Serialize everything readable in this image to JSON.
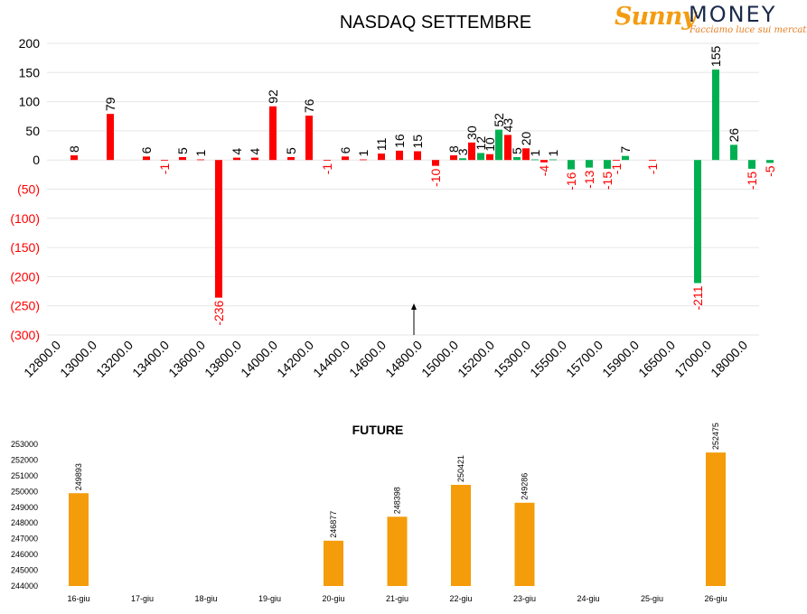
{
  "logo": {
    "script_text": "Sunny",
    "word": "MONEY",
    "tagline": "Facciamo luce sui mercati"
  },
  "colors": {
    "positive_call": "#ff0000",
    "positive_put": "#00b050",
    "negative_label": "#ff0000",
    "axis_text": "#000000",
    "future_bar": "#f59c0a"
  },
  "chart_data": [
    {
      "type": "bar",
      "title": "NASDAQ SETTEMBRE",
      "xlabel": "",
      "ylabel": "",
      "ylim": [
        -300,
        200
      ],
      "y_ticks": [
        {
          "v": 200,
          "label": "200"
        },
        {
          "v": 150,
          "label": "150"
        },
        {
          "v": 100,
          "label": "100"
        },
        {
          "v": 50,
          "label": "50"
        },
        {
          "v": 0,
          "label": "0"
        },
        {
          "v": -50,
          "label": "(50)"
        },
        {
          "v": -100,
          "label": "(100)"
        },
        {
          "v": -150,
          "label": "(150)"
        },
        {
          "v": -200,
          "label": "(200)"
        },
        {
          "v": -250,
          "label": "(250)"
        },
        {
          "v": -300,
          "label": "(300)"
        }
      ],
      "x_tick_labels": [
        "12800.0",
        "13000.0",
        "13200.0",
        "13400.0",
        "13600.0",
        "13800.0",
        "14000.0",
        "14200.0",
        "14400.0",
        "14600.0",
        "14800.0",
        "15000.0",
        "15200.0",
        "15300.0",
        "15500.0",
        "15700.0",
        "15900.0",
        "16500.0",
        "17000.0",
        "18000.0"
      ],
      "grid": true,
      "legend": "none",
      "series": [
        {
          "color": "#ff0000",
          "points": [
            {
              "i": 0.5,
              "v": 8
            },
            {
              "i": 1.5,
              "v": 79
            },
            {
              "i": 2.5,
              "v": 6
            },
            {
              "i": 3.0,
              "v": -1
            },
            {
              "i": 3.5,
              "v": 5
            },
            {
              "i": 4.0,
              "v": 1
            },
            {
              "i": 4.5,
              "v": -236
            },
            {
              "i": 5.0,
              "v": 4
            },
            {
              "i": 5.5,
              "v": 4
            },
            {
              "i": 6.0,
              "v": 92
            },
            {
              "i": 6.5,
              "v": 5
            },
            {
              "i": 7.0,
              "v": 76
            },
            {
              "i": 7.5,
              "v": -1
            },
            {
              "i": 8.0,
              "v": 6
            },
            {
              "i": 8.5,
              "v": 1
            },
            {
              "i": 9.0,
              "v": 11
            },
            {
              "i": 9.5,
              "v": 16
            },
            {
              "i": 10.0,
              "v": 15
            },
            {
              "i": 10.5,
              "v": -10
            },
            {
              "i": 11.0,
              "v": 8
            },
            {
              "i": 11.5,
              "v": 30
            },
            {
              "i": 12.0,
              "v": 10
            },
            {
              "i": 12.5,
              "v": 43
            },
            {
              "i": 13.0,
              "v": 20
            },
            {
              "i": 13.5,
              "v": -4
            },
            {
              "i": 15.5,
              "v": -1
            },
            {
              "i": 16.5,
              "v": -1
            }
          ]
        },
        {
          "color": "#00b050",
          "points": [
            {
              "i": 11.25,
              "v": 3
            },
            {
              "i": 11.75,
              "v": 12
            },
            {
              "i": 12.25,
              "v": 52
            },
            {
              "i": 12.75,
              "v": 5
            },
            {
              "i": 13.25,
              "v": 1
            },
            {
              "i": 13.75,
              "v": 1
            },
            {
              "i": 14.25,
              "v": -16
            },
            {
              "i": 14.75,
              "v": -13
            },
            {
              "i": 15.25,
              "v": -15
            },
            {
              "i": 15.75,
              "v": 7
            },
            {
              "i": 17.75,
              "v": -211
            },
            {
              "i": 18.25,
              "v": 155
            },
            {
              "i": 18.75,
              "v": 26
            },
            {
              "i": 19.25,
              "v": -15
            },
            {
              "i": 19.75,
              "v": -5
            }
          ]
        }
      ]
    },
    {
      "type": "bar",
      "title": "FUTURE",
      "xlabel": "",
      "ylabel": "",
      "ylim": [
        244000,
        253000
      ],
      "y_ticks": [
        253000,
        252000,
        251000,
        250000,
        249000,
        248000,
        247000,
        246000,
        245000,
        244000
      ],
      "categories": [
        "16-giu",
        "17-giu",
        "18-giu",
        "19-giu",
        "20-giu",
        "21-giu",
        "22-giu",
        "23-giu",
        "24-giu",
        "25-giu",
        "26-giu"
      ],
      "values": [
        249893,
        null,
        null,
        null,
        246877,
        248398,
        250421,
        249286,
        null,
        null,
        252475
      ],
      "grid": false,
      "legend": "none"
    }
  ]
}
